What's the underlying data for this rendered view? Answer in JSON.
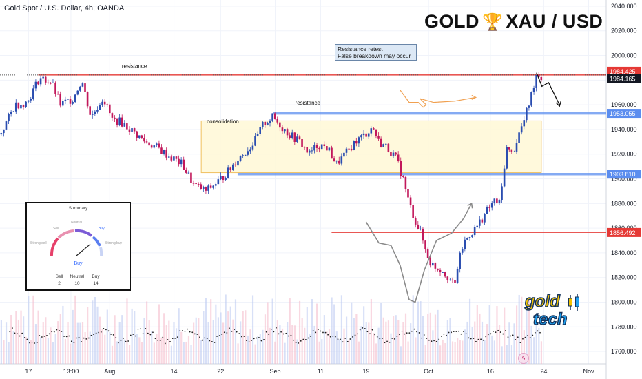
{
  "symbol": "Gold Spot / U.S. Dollar, 4h, OANDA",
  "brand": {
    "left": "GOLD",
    "right": "XAU / USD",
    "trophy_icon": "trophy-icon"
  },
  "note": {
    "line1": "Resistance retest",
    "line2": "False breakdown may occur"
  },
  "summary": {
    "title": "Summary",
    "gauge_labels": {
      "sell": "Sell",
      "neutral": "Neutral",
      "buy": "Buy",
      "strong_sell": "Strong sell",
      "strong_buy": "Strong buy"
    },
    "result": "Buy",
    "counts": [
      {
        "label": "Sell",
        "value": "2"
      },
      {
        "label": "Neutral",
        "value": "10"
      },
      {
        "label": "Buy",
        "value": "14"
      }
    ],
    "needle_fraction": 0.78
  },
  "logo": {
    "line1": "gold",
    "line2": "tech"
  },
  "colors": {
    "up": "#26a69a",
    "down": "#ef5350",
    "candle_up": "#2a4db0",
    "candle_down": "#c2185b",
    "resistance_red": "#e53935",
    "level_blue": "#5b8def",
    "box": "#fff8d6",
    "box_border": "#f0c060",
    "orange_arrow": "#f0a050",
    "grey_curve": "#8a8a8a"
  },
  "chart_data": {
    "type": "candlestick",
    "title": "Gold Spot / U.S. Dollar, 4h, OANDA",
    "y_range": [
      1750,
      2045
    ],
    "y_ticks": [
      "2040.000",
      "2020.000",
      "2000.000",
      "1980.000",
      "1960.000",
      "1940.000",
      "1920.000",
      "1900.000",
      "1880.000",
      "1860.000",
      "1840.000",
      "1820.000",
      "1800.000",
      "1780.000",
      "1760.000"
    ],
    "y_tick_values": [
      2040,
      2020,
      2000,
      1980,
      1960,
      1940,
      1920,
      1900,
      1880,
      1860,
      1840,
      1820,
      1800,
      1780,
      1760
    ],
    "x_range": [
      0,
      100
    ],
    "x_ticks": [
      {
        "label": "17",
        "x": 4.7
      },
      {
        "label": "13:00",
        "x": 11.7
      },
      {
        "label": "Aug",
        "x": 18.1
      },
      {
        "label": "14",
        "x": 28.7
      },
      {
        "label": "22",
        "x": 36.4
      },
      {
        "label": "Sep",
        "x": 45.4
      },
      {
        "label": "11",
        "x": 52.9
      },
      {
        "label": "19",
        "x": 60.4
      },
      {
        "label": "Oct",
        "x": 70.7
      },
      {
        "label": "16",
        "x": 80.9
      },
      {
        "label": "24",
        "x": 89.7
      },
      {
        "label": "Nov",
        "x": 97.1
      }
    ],
    "price_path": [
      [
        0,
        1936
      ],
      [
        2.5,
        1960
      ],
      [
        4.5,
        1962
      ],
      [
        6.5,
        1982
      ],
      [
        8.5,
        1978
      ],
      [
        10,
        1960
      ],
      [
        12,
        1965
      ],
      [
        13.5,
        1980
      ],
      [
        15,
        1950
      ],
      [
        17,
        1966
      ],
      [
        18.5,
        1948
      ],
      [
        20,
        1946
      ],
      [
        22,
        1938
      ],
      [
        24,
        1930
      ],
      [
        26,
        1925
      ],
      [
        28,
        1918
      ],
      [
        30,
        1912
      ],
      [
        32,
        1895
      ],
      [
        34,
        1890
      ],
      [
        36,
        1898
      ],
      [
        37.5,
        1905
      ],
      [
        39,
        1915
      ],
      [
        40.5,
        1922
      ],
      [
        42,
        1930
      ],
      [
        43.5,
        1945
      ],
      [
        45,
        1950
      ],
      [
        46.5,
        1942
      ],
      [
        48,
        1935
      ],
      [
        49.5,
        1930
      ],
      [
        51,
        1920
      ],
      [
        52.5,
        1928
      ],
      [
        54,
        1925
      ],
      [
        55.5,
        1912
      ],
      [
        57,
        1920
      ],
      [
        58.5,
        1930
      ],
      [
        60,
        1935
      ],
      [
        61.5,
        1942
      ],
      [
        62.5,
        1930
      ],
      [
        64,
        1925
      ],
      [
        65.5,
        1915
      ],
      [
        66.5,
        1900
      ],
      [
        67.5,
        1880
      ],
      [
        68.5,
        1866
      ],
      [
        69.5,
        1855
      ],
      [
        70,
        1845
      ],
      [
        71,
        1832
      ],
      [
        72,
        1828
      ],
      [
        73,
        1826
      ],
      [
        74,
        1820
      ],
      [
        75,
        1812
      ],
      [
        75.5,
        1830
      ],
      [
        76.5,
        1848
      ],
      [
        77.5,
        1855
      ],
      [
        78.5,
        1860
      ],
      [
        79.5,
        1868
      ],
      [
        80.5,
        1875
      ],
      [
        81.5,
        1882
      ],
      [
        82.5,
        1880
      ],
      [
        83.5,
        1925
      ],
      [
        84.5,
        1920
      ],
      [
        85.5,
        1935
      ],
      [
        86.5,
        1948
      ],
      [
        87.5,
        1965
      ],
      [
        88.5,
        1985
      ],
      [
        89.5,
        1982
      ]
    ],
    "candle_count": 220,
    "levels": [
      {
        "name": "resistance-red",
        "price": 1984.425,
        "label": "1984.425",
        "color": "#e53935"
      },
      {
        "name": "current",
        "price": 1984.165,
        "label": "1984.165",
        "color": "#131722"
      },
      {
        "name": "resistance-blue",
        "price": 1953.055,
        "label": "1953.055",
        "color": "#5b8def"
      },
      {
        "name": "support-blue",
        "price": 1903.81,
        "label": "1903.810",
        "color": "#5b8def"
      },
      {
        "name": "support-red",
        "price": 1856.492,
        "label": "1856.492",
        "color": "#e53935"
      }
    ],
    "annotations": [
      {
        "text": "resistance",
        "x": 20.1,
        "price": 1990
      },
      {
        "text": "resistance",
        "x": 48.7,
        "price": 1960
      },
      {
        "text": "consolidation",
        "x": 34.1,
        "price": 1945
      }
    ],
    "consolidation_box": {
      "x0": 33.2,
      "x1": 89.3,
      "y0": 1905,
      "y1": 1947
    },
    "projection_path": [
      [
        88.5,
        1986
      ],
      [
        89.4,
        1975
      ],
      [
        90.5,
        1978
      ],
      [
        91.5,
        1968
      ],
      [
        92.3,
        1960
      ]
    ],
    "grey_curve": [
      [
        60.4,
        1865
      ],
      [
        62.5,
        1848
      ],
      [
        64.5,
        1846
      ],
      [
        66,
        1830
      ],
      [
        67.5,
        1802
      ],
      [
        68.5,
        1800
      ],
      [
        70,
        1826
      ],
      [
        72,
        1850
      ],
      [
        74.5,
        1856
      ],
      [
        76.5,
        1868
      ],
      [
        77.8,
        1880
      ]
    ],
    "orange_curve": [
      [
        66,
        1972
      ],
      [
        67.5,
        1962
      ],
      [
        69,
        1962
      ],
      [
        69.8,
        1958
      ],
      [
        70.3,
        1960
      ],
      [
        69.3,
        1965
      ],
      [
        71.5,
        1962
      ],
      [
        75,
        1963
      ],
      [
        78.5,
        1966
      ]
    ],
    "volume_area": {
      "top": 1785,
      "bottom": 1750
    }
  }
}
